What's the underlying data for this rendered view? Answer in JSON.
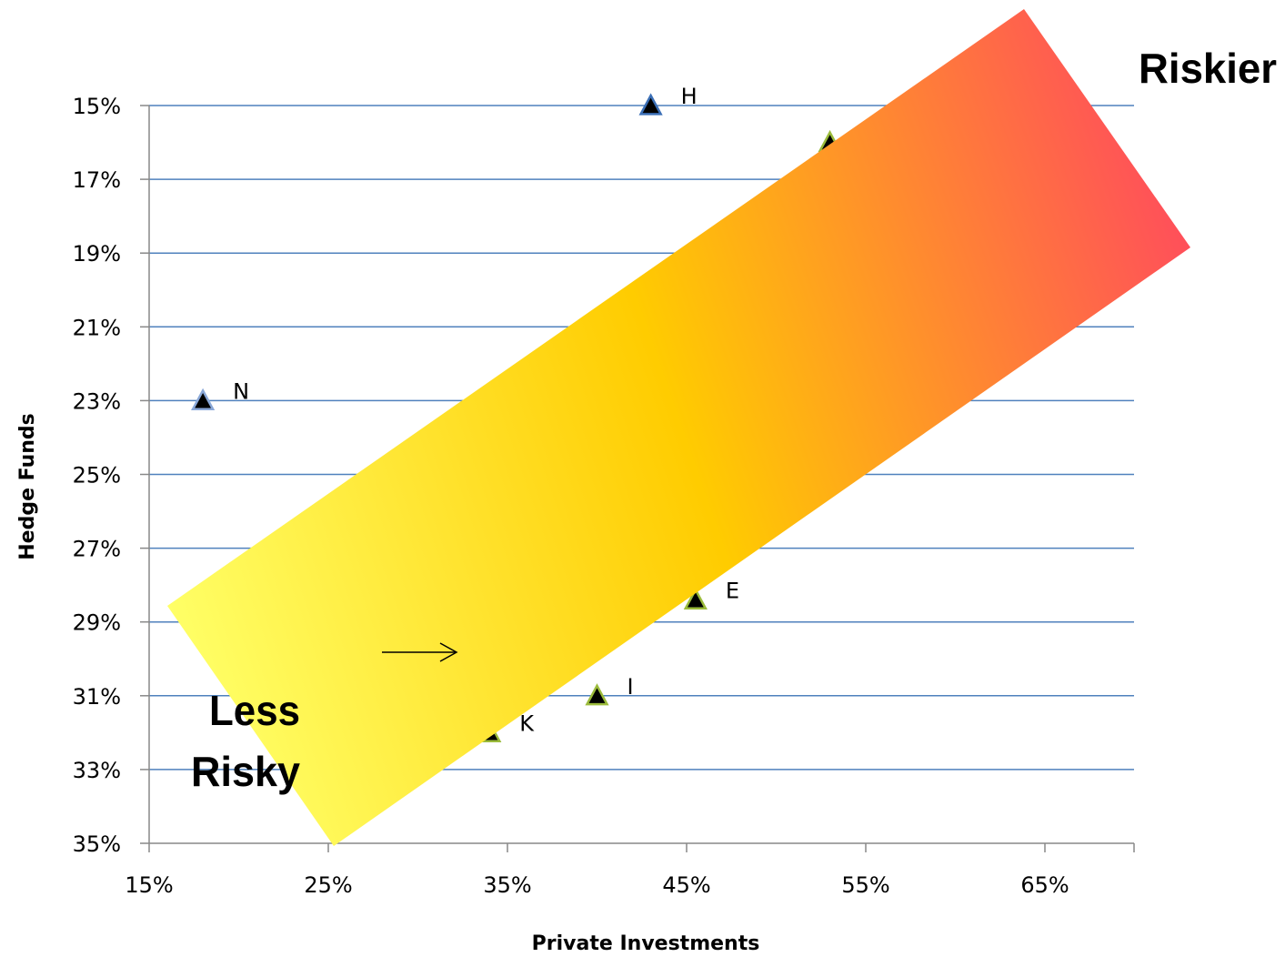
{
  "chart_data": {
    "type": "scatter",
    "xlabel": "Private Investments",
    "ylabel": "Hedge Funds",
    "xlim": [
      0.15,
      0.7
    ],
    "ylim": [
      0.35,
      0.15
    ],
    "y_axis_reversed": true,
    "x_ticks": [
      "15%",
      "25%",
      "35%",
      "45%",
      "55%",
      "65%"
    ],
    "x_tick_values": [
      0.15,
      0.25,
      0.35,
      0.45,
      0.55,
      0.65
    ],
    "y_ticks": [
      "15%",
      "17%",
      "19%",
      "21%",
      "23%",
      "25%",
      "27%",
      "29%",
      "31%",
      "33%",
      "35%"
    ],
    "y_tick_values": [
      0.15,
      0.17,
      0.19,
      0.21,
      0.23,
      0.25,
      0.27,
      0.29,
      0.31,
      0.33,
      0.35
    ],
    "grid": "horizontal",
    "marker": "triangle",
    "points": [
      {
        "label": "H",
        "x": 0.43,
        "y": 0.15,
        "color": "#000000",
        "outline": "#3b6fb6"
      },
      {
        "label": "N",
        "x": 0.18,
        "y": 0.23,
        "color": "#000000",
        "outline": "#8aa8d8"
      },
      {
        "label": "I",
        "x": 0.4,
        "y": 0.31,
        "color": "#000000",
        "outline": "#9bbb3b"
      },
      {
        "label": "E",
        "x": 0.455,
        "y": 0.284,
        "color": "#000000",
        "outline": "#9bbb3b"
      },
      {
        "label": "K",
        "x": 0.34,
        "y": 0.32,
        "color": "#000000",
        "outline": "#9bbb3b"
      },
      {
        "label": "",
        "x": 0.53,
        "y": 0.16,
        "color": "#000000",
        "outline": "#9bbb3b"
      }
    ],
    "annotations": {
      "band_low_label_line1": "Less",
      "band_low_label_line2": "Risky",
      "band_high_label": "Riskier"
    },
    "colors": {
      "gridline": "#4f81bd",
      "band_start": "#ffff66",
      "band_mid": "#ffcc00",
      "band_end": "#ff4f5a"
    }
  }
}
